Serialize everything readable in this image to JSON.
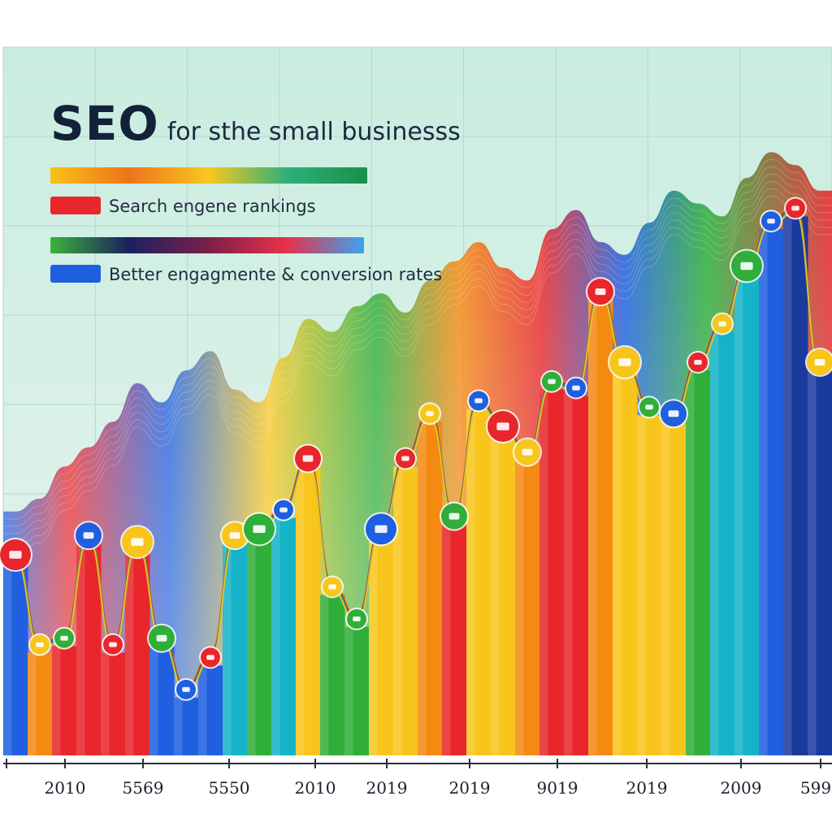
{
  "header": {
    "title_main": "SEO",
    "title_sub": "for sthe small businesss"
  },
  "legend": [
    {
      "label": "Search engene rankings",
      "swatch_color": "#e8262b",
      "gradient": [
        "#f6c215",
        "#f0731c",
        "#f7c820",
        "#2cb07a",
        "#1b8f4a"
      ]
    },
    {
      "label": "Better engagmente & conversion rates",
      "swatch_color": "#1e5fe0",
      "gradient": [
        "#3bb23a",
        "#1b2060",
        "#7a1f4a",
        "#e8304a",
        "#3aa4f0"
      ]
    }
  ],
  "colors": {
    "background_top": "#c9ede0",
    "background_bottom": "#e7f4ee",
    "red": "#e8262b",
    "orange": "#f48a12",
    "yellow": "#f8c51c",
    "green": "#2fae3a",
    "teal": "#14b3c8",
    "blue": "#1f5fe0",
    "navy": "#1a3a9e"
  },
  "chart_data": {
    "type": "bar",
    "title": "SEO for sthe small businesss",
    "xlabel": "",
    "ylabel": "",
    "ylim": [
      0,
      100
    ],
    "grid": true,
    "legend_position": "top-left",
    "x_tick_labels": [
      "2010",
      "5569",
      "5550",
      "2010",
      "2019",
      "2019",
      "9019",
      "2019",
      "2009",
      "599"
    ],
    "series": [
      {
        "name": "Search engene rankings",
        "values": [
          30,
          16,
          17,
          33,
          16,
          32,
          17,
          9,
          14,
          33,
          34,
          37,
          45,
          25,
          20,
          34,
          45,
          52,
          36,
          54,
          50,
          46,
          57,
          56,
          71,
          60,
          53,
          52,
          60,
          66,
          75,
          82,
          84,
          60
        ]
      },
      {
        "name": "Better engagmente & conversion rates",
        "values": [
          38,
          40,
          45,
          48,
          52,
          58,
          55,
          60,
          63,
          57,
          55,
          62,
          68,
          66,
          70,
          72,
          69,
          74,
          77,
          80,
          76,
          74,
          82,
          85,
          80,
          78,
          83,
          88,
          86,
          84,
          90,
          94,
          92,
          88
        ]
      }
    ],
    "bar_colors": [
      "#1f5fe0",
      "#f48a12",
      "#e8262b",
      "#e8262b",
      "#e8262b",
      "#e8262b",
      "#1f5fe0",
      "#1f5fe0",
      "#1f5fe0",
      "#14b3c8",
      "#2fae3a",
      "#14b3c8",
      "#f8c51c",
      "#2fae3a",
      "#2fae3a",
      "#f8c51c",
      "#f8c51c",
      "#f48a12",
      "#e8262b",
      "#f8c51c",
      "#f8c51c",
      "#f48a12",
      "#e8262b",
      "#e8262b",
      "#f48a12",
      "#f8c51c",
      "#f8c51c",
      "#f8c51c",
      "#2fae3a",
      "#14b3c8",
      "#14b3c8",
      "#1f5fe0",
      "#1a3a9e",
      "#1a3a9e"
    ]
  }
}
